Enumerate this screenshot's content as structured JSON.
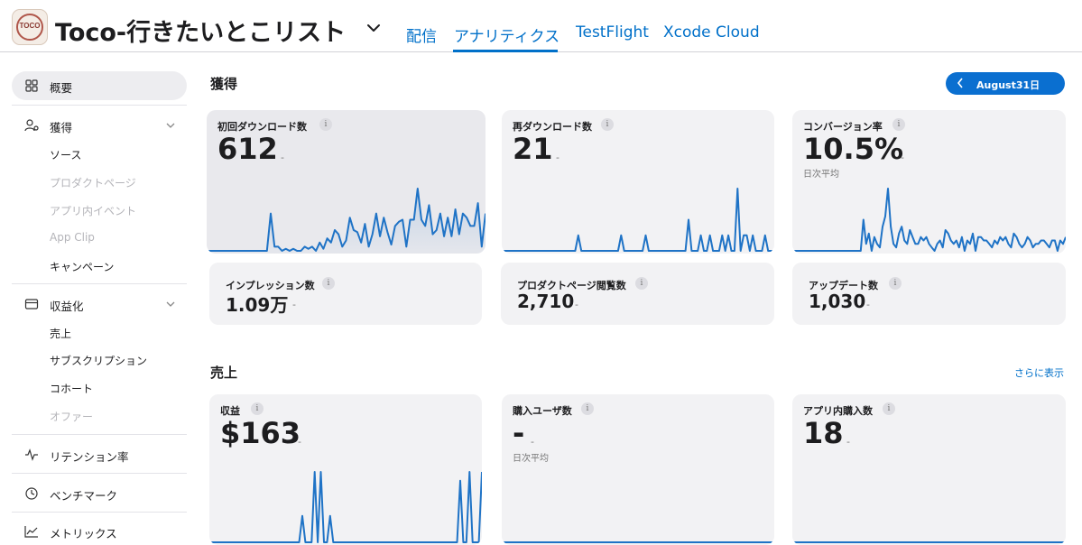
{
  "header": {
    "app_icon_text": "TOCO",
    "app_title": "Toco-行きたいとこリスト",
    "tabs": [
      {
        "label": "配信"
      },
      {
        "label": "アナリティクス",
        "active": true
      },
      {
        "label": "TestFlight"
      },
      {
        "label": "Xcode Cloud"
      }
    ]
  },
  "sidebar": {
    "overview": "概要",
    "acquisition": {
      "label": "獲得",
      "items": [
        "ソース",
        "プロダクトページ",
        "アプリ内イベント",
        "App Clip",
        "キャンペーン"
      ]
    },
    "monetization": {
      "label": "収益化",
      "items": [
        "売上",
        "サブスクリプション",
        "コホート",
        "オファー"
      ]
    },
    "retention": "リテンション率",
    "benchmark": "ベンチマーク",
    "metrics": "メトリックス"
  },
  "acquisition_section": {
    "title": "獲得",
    "date_button": "August31日",
    "cards": [
      {
        "label": "初回ダウンロード数",
        "value": "612",
        "change": "-",
        "info": "i"
      },
      {
        "label": "再ダウンロード数",
        "value": "21",
        "change": "-",
        "info": "i"
      },
      {
        "label": "コンバージョン率",
        "value": "10.5%",
        "change": "-",
        "sub": "日次平均",
        "info": "i"
      }
    ],
    "small_cards": [
      {
        "label": "インプレッション数",
        "value": "1.09万",
        "change": "-",
        "info": "i"
      },
      {
        "label": "プロダクトページ閲覧数",
        "value": "2,710",
        "change": "-",
        "info": "i"
      },
      {
        "label": "アップデート数",
        "value": "1,030",
        "change": "-",
        "info": "i"
      }
    ]
  },
  "sales_section": {
    "title": "売上",
    "more_link": "さらに表示",
    "cards": [
      {
        "label": "収益",
        "value": "$163",
        "change": "-",
        "info": "i"
      },
      {
        "label": "購入ユーザ数",
        "value": "-",
        "change": "-",
        "sub": "日次平均",
        "info": "i"
      },
      {
        "label": "アプリ内購入数",
        "value": "18",
        "change": "-",
        "info": "i"
      }
    ]
  },
  "colors": {
    "accent": "#0070c9",
    "line": "#1f73c6",
    "selected_card": "#e9e9ed"
  },
  "chart_data": [
    {
      "type": "line",
      "name": "初回ダウンロード数",
      "values": [
        0,
        0,
        0,
        0,
        0,
        0,
        0,
        0,
        0,
        0,
        0,
        0,
        0,
        0,
        0,
        0,
        0,
        18,
        2,
        2,
        0,
        1,
        0,
        1,
        0,
        0,
        2,
        1,
        2,
        0,
        4,
        1,
        6,
        4,
        10,
        8,
        2,
        5,
        16,
        10,
        9,
        4,
        13,
        2,
        8,
        18,
        7,
        16,
        9,
        3,
        12,
        14,
        15,
        2,
        15,
        15,
        30,
        15,
        12,
        22,
        8,
        10,
        18,
        7,
        16,
        7,
        20,
        8,
        18,
        16,
        12,
        12,
        23,
        2,
        18
      ]
    },
    {
      "type": "line",
      "name": "再ダウンロード数",
      "values": [
        0,
        0,
        0,
        0,
        0,
        0,
        0,
        0,
        0,
        0,
        0,
        0,
        0,
        0,
        0,
        0,
        0,
        0,
        0,
        0,
        0,
        0,
        0,
        0,
        0,
        1,
        0,
        0,
        0,
        0,
        0,
        0,
        0,
        0,
        0,
        0,
        0,
        0,
        0,
        1,
        0,
        0,
        0,
        0,
        0,
        0,
        0,
        1,
        0,
        0,
        0,
        0,
        0,
        0,
        0,
        0,
        0,
        0,
        0,
        0,
        0,
        2,
        0,
        0,
        0,
        1,
        0,
        0,
        1,
        0,
        0,
        0,
        1,
        0,
        1,
        0,
        0,
        4,
        0,
        1,
        1,
        0,
        1,
        0,
        0,
        0,
        1,
        0,
        0,
        0
      ]
    },
    {
      "type": "line",
      "name": "コンバージョン率",
      "values": [
        0,
        0,
        0,
        0,
        0,
        0,
        0,
        0,
        0,
        0,
        0,
        0,
        0,
        0,
        0,
        0,
        0,
        0,
        0,
        0,
        0,
        0,
        0,
        0,
        0,
        0,
        9,
        2,
        5,
        0,
        4,
        2,
        1,
        7,
        10,
        18,
        7,
        2,
        1,
        5,
        7,
        3,
        2,
        6,
        4,
        2,
        2,
        4,
        3,
        4,
        2,
        1,
        0,
        2,
        3,
        1,
        6,
        5,
        3,
        2,
        3,
        1,
        4,
        0,
        3,
        2,
        5,
        0,
        4,
        4,
        3,
        3,
        2,
        1,
        3,
        2,
        4,
        3,
        4,
        2,
        1,
        5,
        4,
        2,
        1,
        2,
        4,
        3,
        1,
        2,
        2,
        3,
        3,
        2,
        1,
        3,
        3,
        0,
        3,
        2,
        4
      ]
    },
    {
      "type": "line",
      "name": "収益",
      "values": [
        0,
        0,
        0,
        0,
        0,
        0,
        0,
        0,
        0,
        0,
        0,
        0,
        0,
        0,
        0,
        0,
        0,
        0,
        0,
        0,
        0,
        0,
        0,
        0,
        0,
        0,
        0,
        0,
        0,
        0,
        3,
        0,
        0,
        0,
        8,
        0,
        8,
        0,
        0,
        3,
        0,
        0,
        0,
        0,
        0,
        0,
        0,
        0,
        0,
        0,
        0,
        0,
        0,
        0,
        0,
        0,
        0,
        0,
        0,
        0,
        0,
        0,
        0,
        0,
        0,
        0,
        0,
        0,
        0,
        0,
        0,
        0,
        0,
        0,
        0,
        0,
        0,
        0,
        0,
        0,
        0,
        7,
        0,
        0,
        8,
        0,
        0,
        0,
        8
      ]
    },
    {
      "type": "line",
      "name": "購入ユーザ数",
      "values": [
        0,
        0,
        0,
        0,
        0,
        0,
        0,
        0,
        0,
        0,
        0,
        0,
        0,
        0,
        0,
        0,
        0,
        0,
        0,
        0,
        0,
        0,
        0,
        0,
        0,
        0,
        0,
        0,
        0,
        0,
        0,
        0,
        0,
        0,
        0,
        0,
        0,
        0,
        0,
        0,
        0,
        0,
        0,
        0,
        0,
        0,
        0,
        0,
        0,
        0,
        0,
        0,
        0,
        0,
        0,
        0,
        0,
        0,
        0,
        0,
        0,
        0,
        0,
        0,
        0,
        0,
        0,
        0,
        0,
        0,
        0,
        0,
        0,
        0,
        0,
        0,
        0,
        0,
        0,
        0,
        0,
        0,
        0,
        0,
        0,
        0,
        0,
        0,
        0,
        0
      ]
    },
    {
      "type": "line",
      "name": "アプリ内購入数",
      "values": [
        0,
        0,
        0,
        0,
        0,
        0,
        0,
        0,
        0,
        0,
        0,
        0,
        0,
        0,
        0,
        0,
        0,
        0,
        0,
        0,
        0,
        0,
        0,
        0,
        0,
        0,
        0,
        0,
        0,
        0,
        0,
        0,
        0,
        0,
        0,
        0,
        0,
        0,
        0,
        0,
        0,
        0,
        0,
        0,
        0,
        0,
        0,
        0,
        0,
        0,
        0,
        0,
        0,
        0,
        0,
        0,
        0,
        0,
        0,
        0,
        0,
        0,
        0,
        0,
        0,
        0,
        0,
        0,
        0,
        0,
        0,
        0,
        0,
        0,
        0,
        0,
        0,
        0,
        0,
        0,
        0,
        0,
        0,
        0,
        0,
        0,
        0,
        0,
        0,
        0
      ]
    }
  ]
}
